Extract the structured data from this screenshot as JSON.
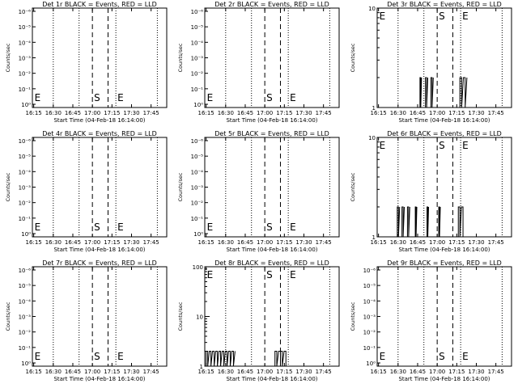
{
  "chart_data": [
    {
      "type": "line",
      "title": "Det 1r BLACK = Events, RED = LLD",
      "xlabel": "Start Time (04-Feb-18 16:14:00)",
      "ylabel": "Counts/sec",
      "scale": "log",
      "yticks": [
        "10⁰",
        "10⁻¹",
        "10⁻²",
        "10⁻³",
        "10⁻⁴",
        "10⁻⁵",
        "10⁻⁶"
      ],
      "ylim": [
        -6,
        0
      ],
      "series": []
    },
    {
      "type": "line",
      "title": "Det 2r BLACK = Events, RED = LLD",
      "xlabel": "Start Time (04-Feb-18 16:14:00)",
      "ylabel": "Counts/sec",
      "scale": "log",
      "yticks": [
        "10⁰",
        "10⁻¹",
        "10⁻²",
        "10⁻³",
        "10⁻⁴",
        "10⁻⁵",
        "10⁻⁶"
      ],
      "ylim": [
        -6,
        0
      ],
      "series": []
    },
    {
      "type": "line",
      "title": "Det 3r BLACK = Events, RED = LLD",
      "xlabel": "Start Time (04-Feb-18 16:14:00)",
      "ylabel": "Counts/sec",
      "scale": "log",
      "yticks": [
        "1",
        "10"
      ],
      "ylim": [
        1,
        10
      ],
      "series": [
        {
          "segments": [
            [
              16.78,
              16.8
            ],
            [
              16.85,
              16.88
            ],
            [
              16.92,
              16.95
            ],
            [
              17.29,
              17.38
            ]
          ],
          "value": 2
        }
      ]
    },
    {
      "type": "line",
      "title": "Det 4r BLACK = Events, RED = LLD",
      "xlabel": "Start Time (04-Feb-18 16:14:00)",
      "ylabel": "Counts/sec",
      "scale": "log",
      "yticks": [
        "10⁰",
        "10⁻¹",
        "10⁻²",
        "10⁻³",
        "10⁻⁴",
        "10⁻⁵",
        "10⁻⁶"
      ],
      "ylim": [
        -6,
        0
      ],
      "series": []
    },
    {
      "type": "line",
      "title": "Det 5r BLACK = Events, RED = LLD",
      "xlabel": "Start Time (04-Feb-18 16:14:00)",
      "ylabel": "Counts/sec",
      "scale": "log",
      "yticks": [
        "10⁰",
        "10⁻¹",
        "10⁻²",
        "10⁻³",
        "10⁻⁴",
        "10⁻⁵",
        "10⁻⁶"
      ],
      "ylim": [
        -6,
        0
      ],
      "series": []
    },
    {
      "type": "line",
      "title": "Det 6r BLACK = Events, RED = LLD",
      "xlabel": "Start Time (04-Feb-18 16:14:00)",
      "ylabel": "Counts/sec",
      "scale": "log",
      "yticks": [
        "1",
        "10"
      ],
      "ylim": [
        1,
        10
      ],
      "series": [
        {
          "segments": [
            [
              16.49,
              16.52
            ],
            [
              16.55,
              16.58
            ],
            [
              16.62,
              16.65
            ],
            [
              16.72,
              16.74
            ],
            [
              16.87,
              16.89
            ],
            [
              17.02,
              17.04
            ],
            [
              17.27,
              17.33
            ]
          ],
          "value": 2
        }
      ]
    },
    {
      "type": "line",
      "title": "Det 7r BLACK = Events, RED = LLD",
      "xlabel": "Start Time (04-Feb-18 16:14:00)",
      "ylabel": "Counts/sec",
      "scale": "log",
      "yticks": [
        "10⁰",
        "10⁻¹",
        "10⁻²",
        "10⁻³",
        "10⁻⁴",
        "10⁻⁵",
        "10⁻⁶"
      ],
      "ylim": [
        -6,
        0
      ],
      "series": []
    },
    {
      "type": "line",
      "title": "Det 8r BLACK = Events, RED = LLD",
      "xlabel": "Start Time (04-Feb-18 16:14:00)",
      "ylabel": "Counts/sec",
      "scale": "log",
      "yticks": [
        "1",
        "10",
        "100"
      ],
      "ylim": [
        1,
        100
      ],
      "series": [
        {
          "segments": [
            [
              16.25,
              16.62
            ],
            [
              17.13,
              17.2
            ],
            [
              17.2,
              17.27
            ]
          ],
          "value": 2
        }
      ]
    },
    {
      "type": "line",
      "title": "Det 9r BLACK = Events, RED = LLD",
      "xlabel": "Start Time (04-Feb-18 16:14:00)",
      "ylabel": "Counts/sec",
      "scale": "log",
      "yticks": [
        "10⁰",
        "10⁻¹",
        "10⁻²",
        "10⁻³",
        "10⁻⁴",
        "10⁻⁵",
        "10⁻⁶"
      ],
      "ylim": [
        -6,
        0
      ],
      "series": []
    }
  ],
  "xticks": [
    "16:15",
    "16:30",
    "16:45",
    "17:00",
    "17:15",
    "17:30",
    "17:45"
  ],
  "xtick_hours": [
    16.25,
    16.5,
    16.75,
    17.0,
    17.25,
    17.5,
    17.75
  ],
  "xlim_hours": [
    16.233,
    17.95
  ],
  "markers": {
    "E_left": "E",
    "S": "S",
    "E_right": "E"
  },
  "marker_hours": {
    "E_left": 16.24,
    "S": 17.0,
    "E_right": 17.3
  },
  "dotted_hours": [
    16.5,
    16.83,
    17.3,
    17.83
  ],
  "dashed_hours": [
    17.0,
    17.2
  ]
}
